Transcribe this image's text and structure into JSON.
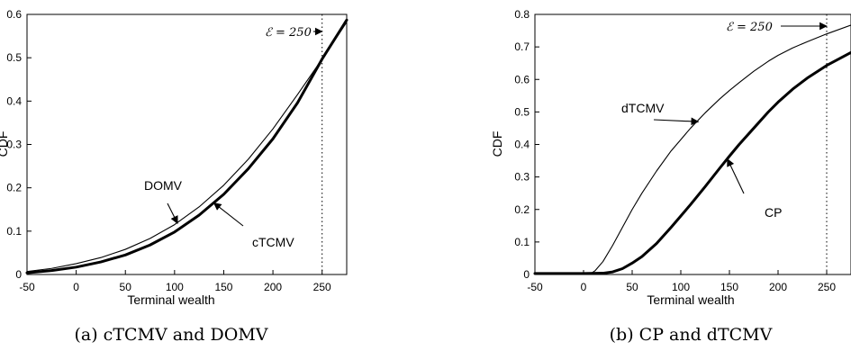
{
  "chart_data": [
    {
      "type": "line",
      "caption": "(a) cTCMV and DOMV",
      "xlabel": "Terminal wealth",
      "ylabel": "CDF",
      "xlim": [
        -50,
        275
      ],
      "ylim": [
        0,
        0.6
      ],
      "xticks": [
        -50,
        0,
        50,
        100,
        150,
        200,
        250
      ],
      "yticks": [
        0,
        0.1,
        0.2,
        0.3,
        0.4,
        0.5,
        0.6
      ],
      "xtick_labels": [
        "-50",
        "0",
        "50",
        "100",
        "150",
        "200",
        "250"
      ],
      "ytick_labels": [
        "0",
        "0.1",
        "0.2",
        "0.3",
        "0.4",
        "0.5",
        "0.6"
      ],
      "vline": {
        "x": 250,
        "style": "dotted"
      },
      "annotation_top": {
        "text": "ℰ = 250",
        "target": [
          250,
          0.583
        ]
      },
      "series": [
        {
          "name": "cTCMV",
          "line_weight": "thick",
          "x": [
            -50,
            -25,
            0,
            25,
            50,
            75,
            100,
            125,
            150,
            175,
            200,
            225,
            250,
            275
          ],
          "y": [
            0.004,
            0.009,
            0.017,
            0.029,
            0.045,
            0.068,
            0.098,
            0.137,
            0.185,
            0.244,
            0.313,
            0.396,
            0.497,
            0.587
          ]
        },
        {
          "name": "DOMV",
          "line_weight": "thin",
          "x": [
            -50,
            -25,
            0,
            25,
            50,
            75,
            100,
            125,
            150,
            175,
            200,
            225,
            250,
            275
          ],
          "y": [
            0.007,
            0.014,
            0.025,
            0.039,
            0.058,
            0.083,
            0.115,
            0.156,
            0.206,
            0.266,
            0.336,
            0.415,
            0.497,
            0.582
          ]
        }
      ],
      "annotations": [
        {
          "text": "DOMV",
          "series": "DOMV",
          "arrow_to": [
            103,
            0.118
          ]
        },
        {
          "text": "cTCMV",
          "series": "cTCMV",
          "arrow_to": [
            140,
            0.165
          ]
        }
      ]
    },
    {
      "type": "line",
      "caption": "(b) CP and dTCMV",
      "xlabel": "Terminal wealth",
      "ylabel": "CDF",
      "xlim": [
        -50,
        275
      ],
      "ylim": [
        0,
        0.8
      ],
      "xticks": [
        -50,
        0,
        50,
        100,
        150,
        200,
        250
      ],
      "yticks": [
        0,
        0.1,
        0.2,
        0.3,
        0.4,
        0.5,
        0.6,
        0.7,
        0.8
      ],
      "xtick_labels": [
        "-50",
        "0",
        "50",
        "100",
        "150",
        "200",
        "250"
      ],
      "ytick_labels": [
        "0",
        "0.1",
        "0.2",
        "0.3",
        "0.4",
        "0.5",
        "0.6",
        "0.7",
        "0.8"
      ],
      "vline": {
        "x": 250,
        "style": "dotted"
      },
      "annotation_top": {
        "text": "ℰ = 250",
        "target": [
          250,
          0.775
        ]
      },
      "series": [
        {
          "name": "dTCMV",
          "line_weight": "thin",
          "x": [
            -50,
            0,
            8,
            12,
            20,
            30,
            40,
            50,
            60,
            75,
            90,
            100,
            110,
            125,
            140,
            150,
            160,
            175,
            190,
            200,
            215,
            230,
            250,
            275
          ],
          "y": [
            0.003,
            0.003,
            0.004,
            0.012,
            0.04,
            0.09,
            0.145,
            0.2,
            0.25,
            0.318,
            0.38,
            0.415,
            0.45,
            0.497,
            0.54,
            0.566,
            0.59,
            0.625,
            0.656,
            0.674,
            0.697,
            0.716,
            0.74,
            0.767
          ]
        },
        {
          "name": "CP",
          "line_weight": "thick",
          "x": [
            -50,
            0,
            20,
            30,
            40,
            50,
            60,
            75,
            90,
            100,
            110,
            125,
            140,
            150,
            160,
            175,
            190,
            200,
            215,
            230,
            250,
            275
          ],
          "y": [
            0.003,
            0.003,
            0.004,
            0.008,
            0.018,
            0.035,
            0.055,
            0.095,
            0.145,
            0.18,
            0.215,
            0.27,
            0.327,
            0.364,
            0.4,
            0.45,
            0.5,
            0.53,
            0.57,
            0.604,
            0.643,
            0.683
          ]
        }
      ],
      "annotations": [
        {
          "text": "dTCMV",
          "series": "dTCMV",
          "arrow_to": [
            118,
            0.47
          ]
        },
        {
          "text": "CP",
          "series": "CP",
          "arrow_to": [
            148,
            0.355
          ]
        }
      ]
    }
  ]
}
